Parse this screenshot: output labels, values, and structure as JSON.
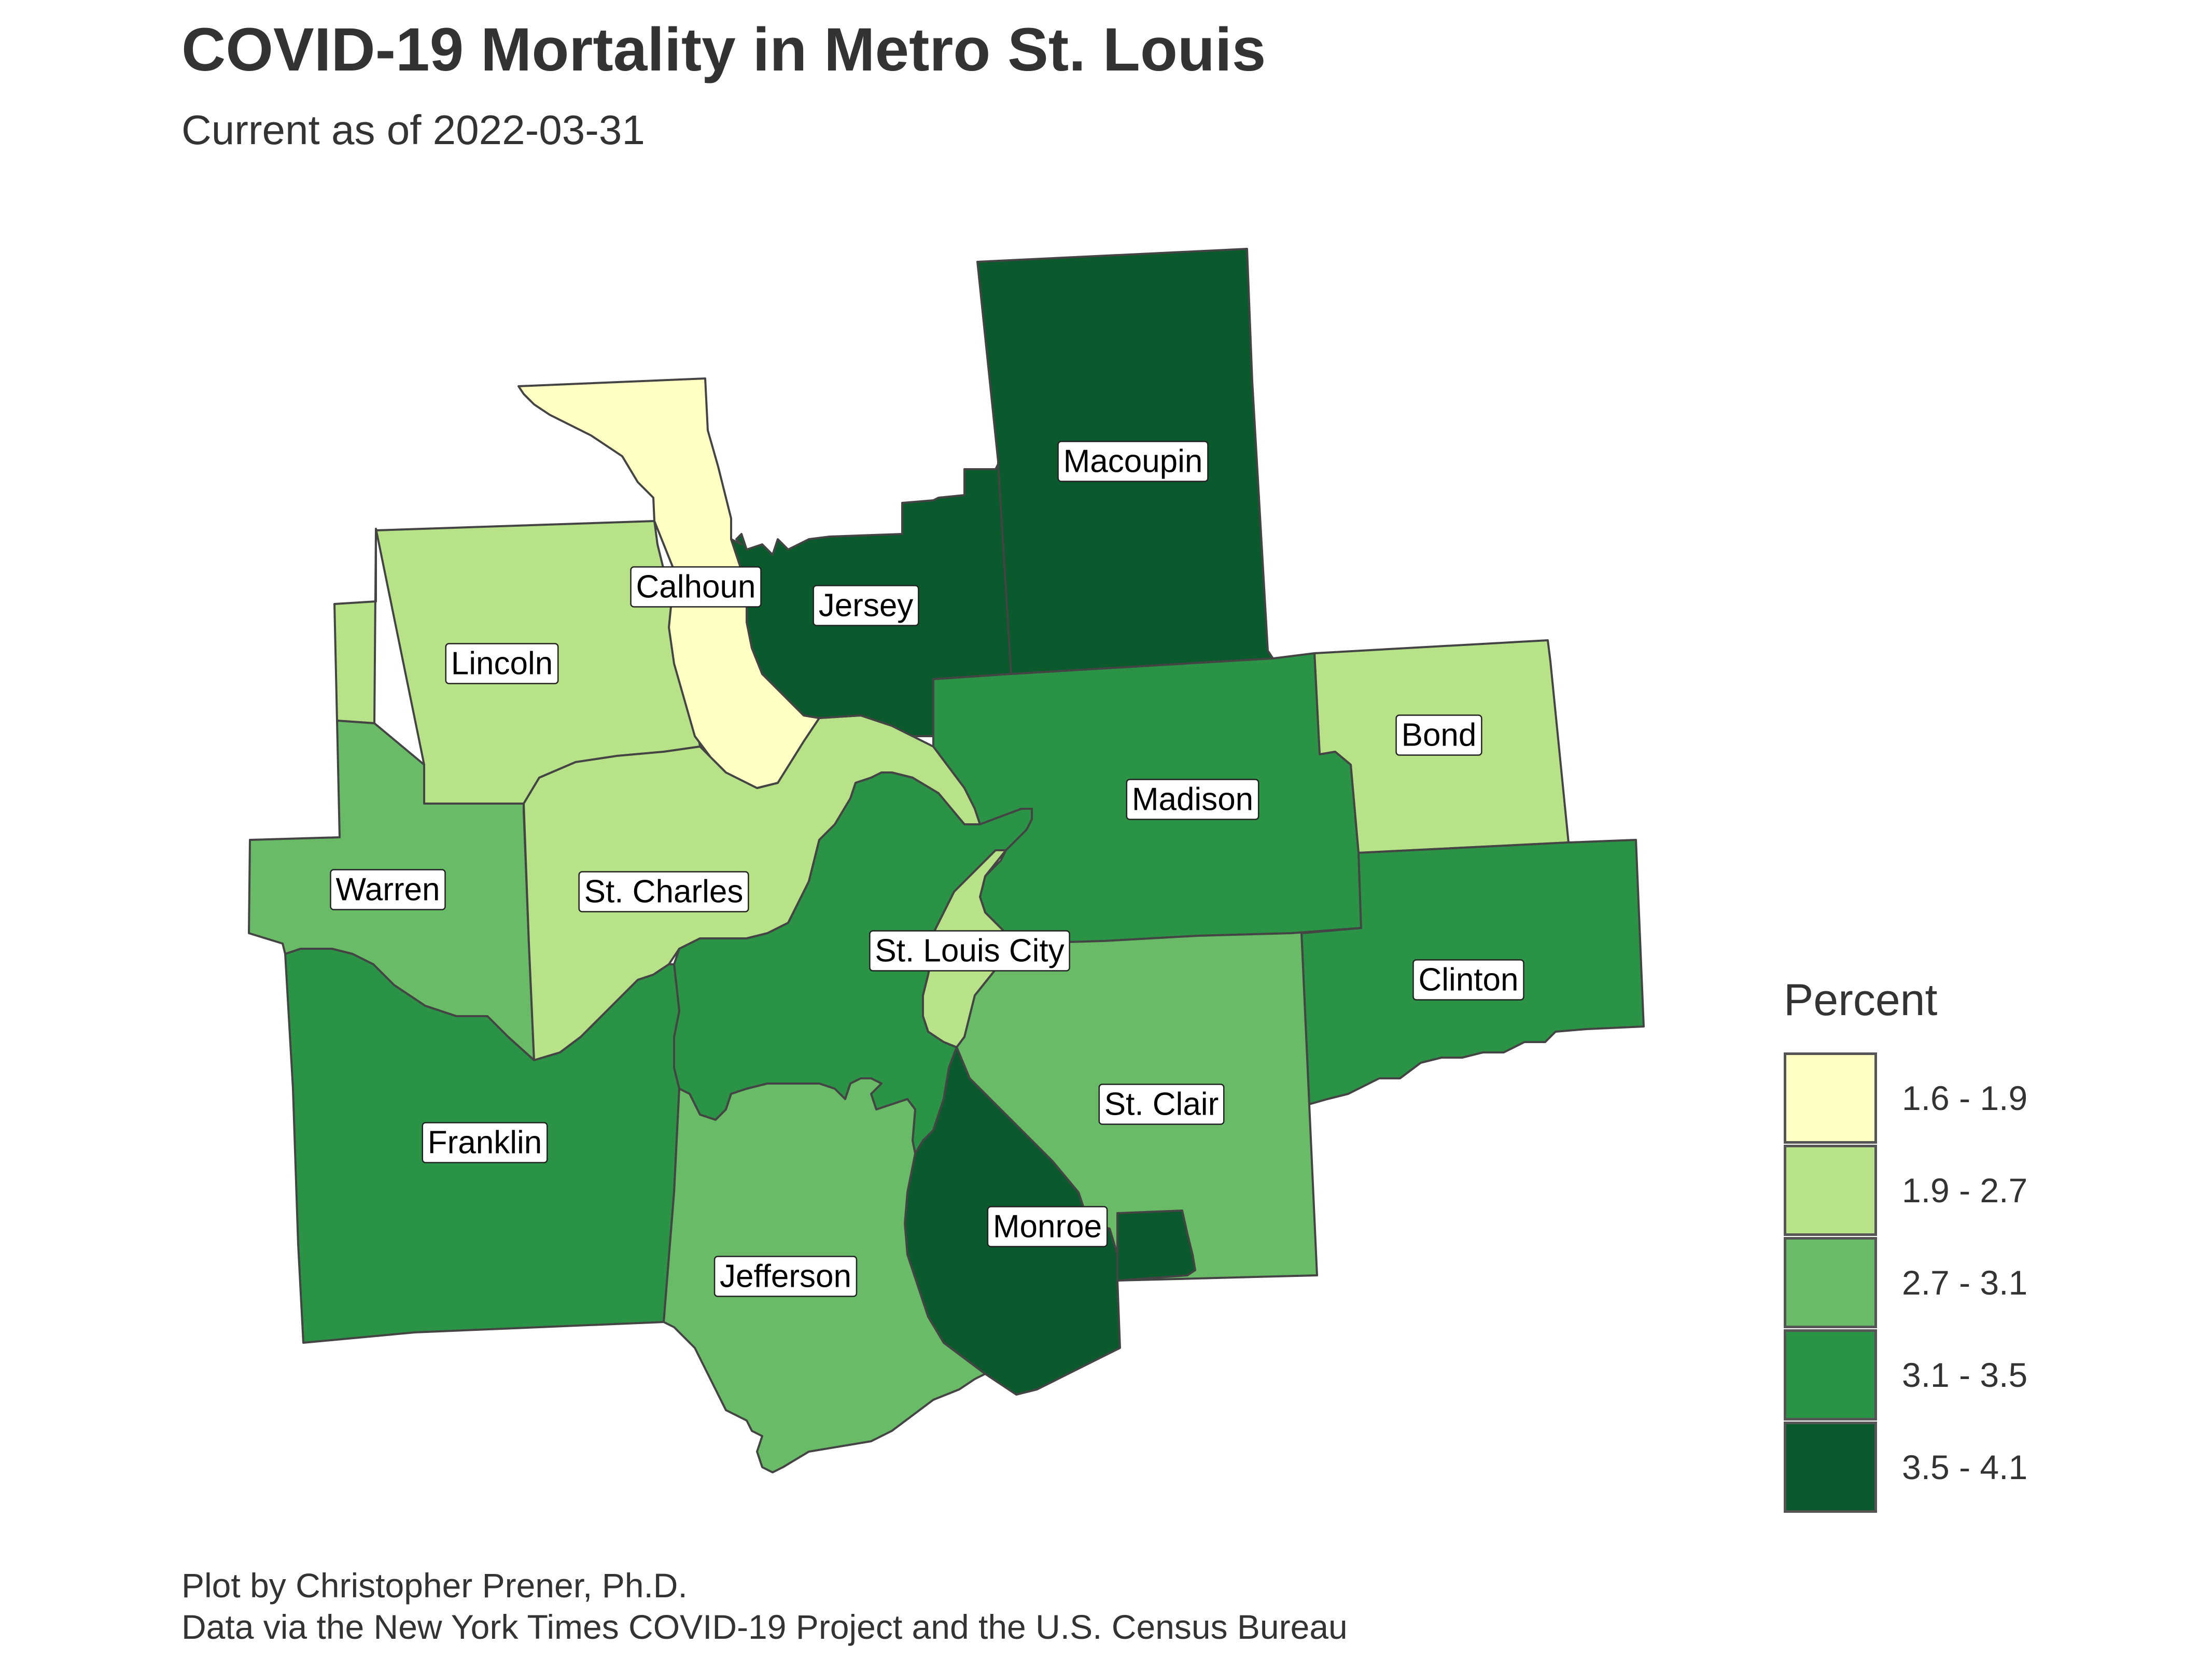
{
  "title": "COVID-19 Mortality in Metro St. Louis",
  "subtitle": "Current as of 2022-03-31",
  "caption": {
    "line1": "Plot by Christopher Prener, Ph.D.",
    "line2": "Data via the New York Times COVID-19 Project and the U.S. Census Bureau"
  },
  "legend": {
    "title": "Percent",
    "bins": [
      {
        "label": "1.6 - 1.9",
        "color": "#FFFFC4"
      },
      {
        "label": "1.9 - 2.7",
        "color": "#B7E288"
      },
      {
        "label": "2.7 - 3.1",
        "color": "#69BB67"
      },
      {
        "label": "3.1 - 3.5",
        "color": "#2B9345"
      },
      {
        "label": "3.5 - 4.1",
        "color": "#0A5A2D"
      }
    ]
  },
  "counties": [
    {
      "name": "Macoupin",
      "bin": 4
    },
    {
      "name": "Calhoun",
      "bin": 0
    },
    {
      "name": "Jersey",
      "bin": 4
    },
    {
      "name": "Lincoln",
      "bin": 1
    },
    {
      "name": "Bond",
      "bin": 1
    },
    {
      "name": "Madison",
      "bin": 3
    },
    {
      "name": "Warren",
      "bin": 2
    },
    {
      "name": "St. Charles",
      "bin": 1
    },
    {
      "name": "St. Louis City",
      "bin": 1
    },
    {
      "name": "Clinton",
      "bin": 3
    },
    {
      "name": "St. Clair",
      "bin": 2
    },
    {
      "name": "Franklin",
      "bin": 3
    },
    {
      "name": "Monroe",
      "bin": 4
    },
    {
      "name": "Jefferson",
      "bin": 2
    }
  ]
}
